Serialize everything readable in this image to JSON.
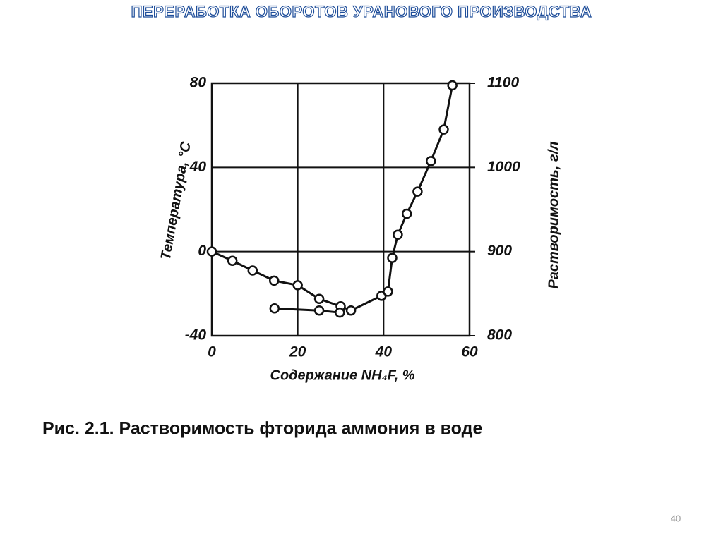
{
  "header": {
    "title": "ПЕРЕРАБОТКА ОБОРОТОВ УРАНОВОГО ПРОИЗВОДСТВА"
  },
  "chart_data": {
    "type": "line",
    "ylabel": "Температура, °C",
    "y2label": "Растворимость, г/л",
    "xlabel": "Содержание NH₄F, %",
    "xlim": [
      0,
      60
    ],
    "xticks": [
      0,
      20,
      40,
      60
    ],
    "ylim": [
      -40,
      80
    ],
    "yticks": [
      -40,
      0,
      40,
      80
    ],
    "y2lim": [
      800,
      1100
    ],
    "y2ticks": [
      800,
      900,
      1000,
      1100
    ],
    "grid": true,
    "series": [
      {
        "color": "#111111",
        "x": [
          0,
          4.8,
          9.5,
          14.5,
          20,
          25,
          30,
          32.4,
          39.5,
          41,
          42,
          43.3,
          45.4,
          47.9,
          51,
          54,
          56
        ],
        "values": [
          0,
          -4.4,
          -9,
          -13.8,
          -16,
          -22.5,
          -26,
          -28,
          -21,
          -19,
          -3,
          8,
          18,
          28.5,
          43,
          58,
          79
        ]
      },
      {
        "color": "#111111",
        "x": [
          14.6,
          25,
          29.8
        ],
        "values": [
          -27,
          -28,
          -29
        ]
      }
    ]
  },
  "caption": "Рис. 2.1. Растворимость фторида аммония в воде",
  "page_number": "40"
}
